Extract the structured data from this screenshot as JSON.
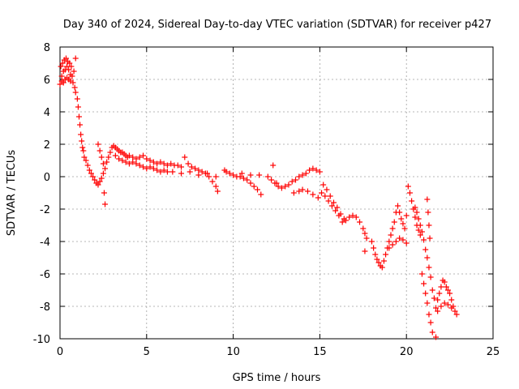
{
  "chart_data": {
    "type": "scatter",
    "title": "Day 340 of 2024, Sidereal Day-to-day VTEC variation (SDTVAR) for receiver p427",
    "xlabel": "GPS time / hours",
    "ylabel": "SDTVAR / TECUs",
    "xlim": [
      0,
      25
    ],
    "ylim": [
      -10,
      8
    ],
    "xticks": [
      0,
      5,
      10,
      15,
      20,
      25
    ],
    "yticks": [
      -10,
      -8,
      -6,
      -4,
      -2,
      0,
      2,
      4,
      6,
      8
    ],
    "xtick_labels": [
      "0",
      "5",
      "10",
      "15",
      "20",
      "25"
    ],
    "ytick_labels": [
      "-10",
      "-8",
      "-6",
      "-4",
      "-2",
      "0",
      "2",
      "4",
      "6",
      "8"
    ],
    "grid": true,
    "marker": "+",
    "color": "#ff0000",
    "series": [
      {
        "name": "SDTVAR",
        "points": [
          [
            0.0,
            5.7
          ],
          [
            0.05,
            6.8
          ],
          [
            0.1,
            6.2
          ],
          [
            0.1,
            5.9
          ],
          [
            0.15,
            7.0
          ],
          [
            0.2,
            6.5
          ],
          [
            0.2,
            5.8
          ],
          [
            0.25,
            7.2
          ],
          [
            0.3,
            6.6
          ],
          [
            0.3,
            6.0
          ],
          [
            0.35,
            7.3
          ],
          [
            0.4,
            6.8
          ],
          [
            0.4,
            6.1
          ],
          [
            0.45,
            7.1
          ],
          [
            0.5,
            6.6
          ],
          [
            0.5,
            6.0
          ],
          [
            0.55,
            7.0
          ],
          [
            0.6,
            6.3
          ],
          [
            0.6,
            5.9
          ],
          [
            0.65,
            6.8
          ],
          [
            0.7,
            6.2
          ],
          [
            0.75,
            5.8
          ],
          [
            0.8,
            6.5
          ],
          [
            0.85,
            5.5
          ],
          [
            0.9,
            7.3
          ],
          [
            0.9,
            5.2
          ],
          [
            1.0,
            4.8
          ],
          [
            1.05,
            4.3
          ],
          [
            1.1,
            3.7
          ],
          [
            1.15,
            3.2
          ],
          [
            1.2,
            2.6
          ],
          [
            1.25,
            2.2
          ],
          [
            1.3,
            1.8
          ],
          [
            1.35,
            1.6
          ],
          [
            1.4,
            1.2
          ],
          [
            1.5,
            1.0
          ],
          [
            1.6,
            0.7
          ],
          [
            1.7,
            0.4
          ],
          [
            1.8,
            0.2
          ],
          [
            1.9,
            0.0
          ],
          [
            2.0,
            -0.2
          ],
          [
            2.1,
            -0.4
          ],
          [
            2.2,
            -0.5
          ],
          [
            2.3,
            -0.3
          ],
          [
            2.4,
            -0.1
          ],
          [
            2.5,
            0.2
          ],
          [
            2.55,
            -1.0
          ],
          [
            2.6,
            -1.7
          ],
          [
            2.2,
            2.0
          ],
          [
            2.3,
            1.6
          ],
          [
            2.4,
            1.2
          ],
          [
            2.5,
            0.8
          ],
          [
            2.6,
            0.5
          ],
          [
            2.7,
            0.9
          ],
          [
            2.8,
            1.2
          ],
          [
            2.9,
            1.5
          ],
          [
            3.0,
            1.8
          ],
          [
            3.1,
            1.9
          ],
          [
            3.2,
            1.8
          ],
          [
            3.3,
            1.7
          ],
          [
            3.4,
            1.6
          ],
          [
            3.5,
            1.5
          ],
          [
            3.6,
            1.5
          ],
          [
            3.7,
            1.4
          ],
          [
            3.8,
            1.3
          ],
          [
            3.9,
            1.2
          ],
          [
            4.0,
            1.3
          ],
          [
            4.2,
            1.2
          ],
          [
            4.4,
            1.1
          ],
          [
            4.6,
            1.2
          ],
          [
            4.8,
            1.3
          ],
          [
            5.0,
            1.1
          ],
          [
            3.2,
            1.3
          ],
          [
            3.4,
            1.1
          ],
          [
            3.6,
            1.0
          ],
          [
            3.8,
            0.9
          ],
          [
            4.0,
            0.8
          ],
          [
            4.2,
            0.9
          ],
          [
            4.4,
            0.8
          ],
          [
            4.6,
            0.7
          ],
          [
            4.8,
            0.6
          ],
          [
            5.0,
            0.5
          ],
          [
            5.2,
            0.6
          ],
          [
            5.4,
            0.5
          ],
          [
            5.6,
            0.4
          ],
          [
            5.8,
            0.3
          ],
          [
            6.0,
            0.4
          ],
          [
            6.2,
            0.3
          ],
          [
            5.2,
            1.0
          ],
          [
            5.4,
            0.9
          ],
          [
            5.6,
            0.8
          ],
          [
            5.8,
            0.9
          ],
          [
            6.0,
            0.8
          ],
          [
            6.2,
            0.7
          ],
          [
            6.4,
            0.8
          ],
          [
            6.6,
            0.7
          ],
          [
            6.8,
            0.7
          ],
          [
            7.0,
            0.6
          ],
          [
            7.2,
            1.2
          ],
          [
            7.4,
            0.8
          ],
          [
            7.6,
            0.6
          ],
          [
            7.8,
            0.5
          ],
          [
            8.0,
            0.4
          ],
          [
            8.2,
            0.3
          ],
          [
            8.4,
            0.2
          ],
          [
            8.6,
            0.0
          ],
          [
            8.8,
            -0.3
          ],
          [
            9.0,
            -0.6
          ],
          [
            9.1,
            -0.9
          ],
          [
            6.5,
            0.3
          ],
          [
            7.0,
            0.2
          ],
          [
            7.5,
            0.3
          ],
          [
            8.0,
            0.1
          ],
          [
            8.5,
            0.2
          ],
          [
            9.0,
            0.0
          ],
          [
            9.5,
            0.4
          ],
          [
            9.6,
            0.3
          ],
          [
            9.8,
            0.2
          ],
          [
            10.0,
            0.1
          ],
          [
            10.2,
            0.0
          ],
          [
            10.4,
            0.0
          ],
          [
            10.6,
            -0.1
          ],
          [
            10.8,
            -0.2
          ],
          [
            11.0,
            -0.4
          ],
          [
            11.2,
            -0.6
          ],
          [
            11.4,
            -0.8
          ],
          [
            11.6,
            -1.1
          ],
          [
            10.5,
            0.2
          ],
          [
            11.0,
            0.1
          ],
          [
            11.5,
            0.1
          ],
          [
            12.0,
            0.0
          ],
          [
            12.2,
            -0.2
          ],
          [
            12.4,
            -0.4
          ],
          [
            12.6,
            -0.6
          ],
          [
            12.8,
            -0.7
          ],
          [
            13.0,
            -0.6
          ],
          [
            13.2,
            -0.5
          ],
          [
            13.4,
            -0.3
          ],
          [
            13.6,
            -0.2
          ],
          [
            13.8,
            0.0
          ],
          [
            14.0,
            0.1
          ],
          [
            14.2,
            0.2
          ],
          [
            14.4,
            0.4
          ],
          [
            14.6,
            0.5
          ],
          [
            14.8,
            0.4
          ],
          [
            15.0,
            0.3
          ],
          [
            12.3,
            0.7
          ],
          [
            12.5,
            -0.4
          ],
          [
            13.5,
            -1.0
          ],
          [
            13.8,
            -0.9
          ],
          [
            14.0,
            -0.8
          ],
          [
            14.3,
            -0.9
          ],
          [
            14.6,
            -1.1
          ],
          [
            14.9,
            -1.3
          ],
          [
            15.1,
            -1.0
          ],
          [
            15.3,
            -1.2
          ],
          [
            15.5,
            -1.5
          ],
          [
            15.7,
            -1.8
          ],
          [
            15.9,
            -2.1
          ],
          [
            16.1,
            -2.4
          ],
          [
            16.3,
            -2.8
          ],
          [
            16.5,
            -2.7
          ],
          [
            16.7,
            -2.5
          ],
          [
            16.9,
            -2.4
          ],
          [
            17.1,
            -2.5
          ],
          [
            17.3,
            -2.8
          ],
          [
            17.5,
            -3.2
          ],
          [
            17.6,
            -3.5
          ],
          [
            17.7,
            -3.8
          ],
          [
            17.6,
            -4.6
          ],
          [
            15.2,
            -0.5
          ],
          [
            15.4,
            -0.8
          ],
          [
            15.6,
            -1.2
          ],
          [
            15.8,
            -1.6
          ],
          [
            16.0,
            -1.9
          ],
          [
            16.2,
            -2.3
          ],
          [
            16.4,
            -2.6
          ],
          [
            18.0,
            -4.0
          ],
          [
            18.1,
            -4.4
          ],
          [
            18.2,
            -4.8
          ],
          [
            18.3,
            -5.1
          ],
          [
            18.4,
            -5.3
          ],
          [
            18.5,
            -5.5
          ],
          [
            18.6,
            -5.6
          ],
          [
            18.7,
            -5.2
          ],
          [
            18.8,
            -4.8
          ],
          [
            18.9,
            -4.4
          ],
          [
            19.0,
            -4.0
          ],
          [
            19.1,
            -3.6
          ],
          [
            19.2,
            -3.2
          ],
          [
            19.3,
            -2.8
          ],
          [
            19.4,
            -2.2
          ],
          [
            19.5,
            -1.8
          ],
          [
            19.6,
            -2.2
          ],
          [
            19.7,
            -2.6
          ],
          [
            19.8,
            -2.9
          ],
          [
            19.9,
            -3.2
          ],
          [
            20.0,
            -2.4
          ],
          [
            19.0,
            -4.4
          ],
          [
            19.2,
            -4.2
          ],
          [
            19.4,
            -4.0
          ],
          [
            19.6,
            -3.8
          ],
          [
            19.8,
            -3.9
          ],
          [
            20.0,
            -4.1
          ],
          [
            20.1,
            -0.6
          ],
          [
            20.2,
            -1.0
          ],
          [
            20.3,
            -1.5
          ],
          [
            20.4,
            -2.0
          ],
          [
            20.5,
            -2.5
          ],
          [
            20.6,
            -3.0
          ],
          [
            20.7,
            -3.3
          ],
          [
            20.8,
            -3.6
          ],
          [
            20.5,
            -1.9
          ],
          [
            20.6,
            -2.2
          ],
          [
            20.7,
            -2.6
          ],
          [
            20.8,
            -3.0
          ],
          [
            20.9,
            -3.4
          ],
          [
            21.0,
            -3.9
          ],
          [
            21.1,
            -4.5
          ],
          [
            21.2,
            -5.0
          ],
          [
            21.3,
            -5.6
          ],
          [
            21.4,
            -6.2
          ],
          [
            21.2,
            -1.4
          ],
          [
            21.25,
            -2.2
          ],
          [
            21.3,
            -3.0
          ],
          [
            21.35,
            -3.8
          ],
          [
            20.9,
            -6.0
          ],
          [
            21.0,
            -6.6
          ],
          [
            21.1,
            -7.2
          ],
          [
            21.2,
            -7.8
          ],
          [
            21.3,
            -8.5
          ],
          [
            21.4,
            -9.0
          ],
          [
            21.5,
            -9.6
          ],
          [
            21.7,
            -9.9
          ],
          [
            21.5,
            -7.0
          ],
          [
            21.6,
            -7.5
          ],
          [
            21.7,
            -8.1
          ],
          [
            21.8,
            -7.6
          ],
          [
            21.9,
            -7.2
          ],
          [
            22.0,
            -6.8
          ],
          [
            22.1,
            -6.4
          ],
          [
            22.2,
            -6.5
          ],
          [
            22.3,
            -6.8
          ],
          [
            22.4,
            -7.0
          ],
          [
            22.5,
            -7.2
          ],
          [
            22.6,
            -7.6
          ],
          [
            22.7,
            -8.0
          ],
          [
            22.8,
            -8.3
          ],
          [
            22.9,
            -8.5
          ],
          [
            21.8,
            -8.3
          ],
          [
            22.0,
            -8.0
          ],
          [
            22.2,
            -7.8
          ],
          [
            22.4,
            -7.9
          ],
          [
            22.6,
            -8.1
          ]
        ]
      }
    ]
  }
}
